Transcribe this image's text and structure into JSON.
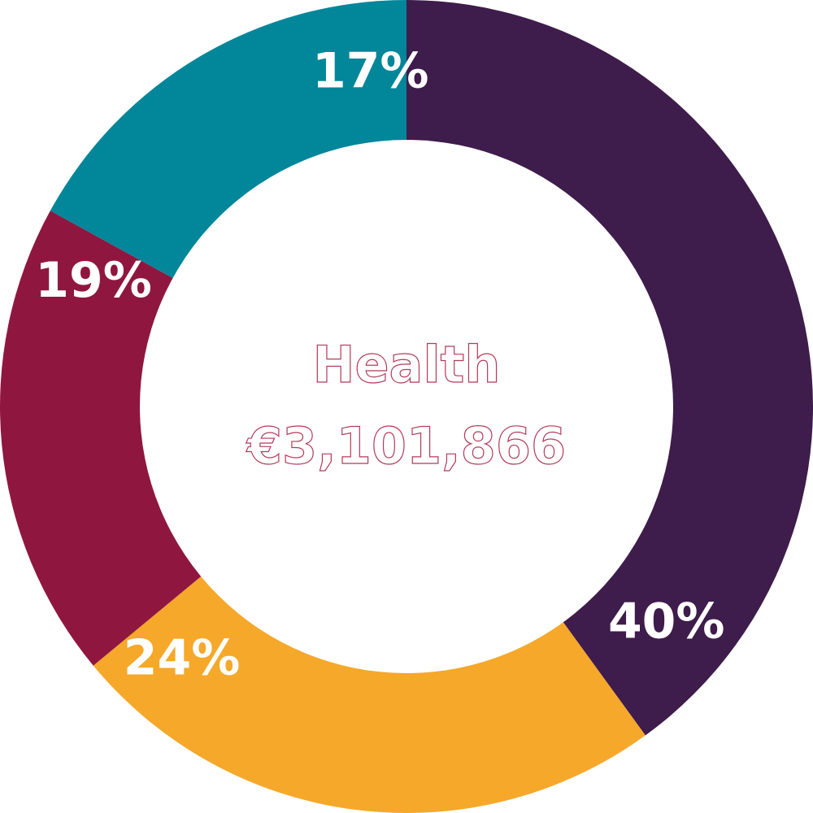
{
  "chart_data": {
    "type": "pie",
    "center": {
      "title": "Health",
      "amount": "€3,101,866"
    },
    "slices": [
      {
        "label": "40%",
        "value": 40,
        "color": "#3e1c4b"
      },
      {
        "label": "24%",
        "value": 24,
        "color": "#f5a82a"
      },
      {
        "label": "19%",
        "value": 19,
        "color": "#8f173f"
      },
      {
        "label": "17%",
        "value": 17,
        "color": "#01869a"
      }
    ]
  }
}
